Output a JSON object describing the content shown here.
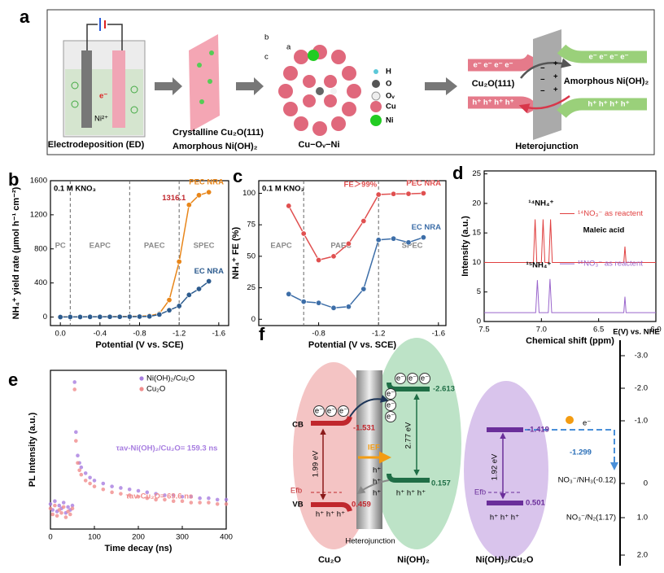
{
  "chart_data": [
    {
      "type": "line",
      "panel_label": "b",
      "xlabel": "Potential (V vs. SCE)",
      "ylabel": "NH₄⁺ yield rate (μmol h⁻¹ cm⁻²)",
      "note": "0.1 M KNO₃",
      "xlim": [
        0.1,
        -1.7
      ],
      "ylim": [
        -100,
        1600
      ],
      "xticks": [
        {
          "value": 0,
          "label": "0.0"
        },
        -0.4,
        -0.8,
        -1.2,
        -1.6
      ],
      "yticks": [
        0,
        400,
        800,
        1200,
        1600
      ],
      "vlines": [
        -0.1,
        -0.7,
        -1.2
      ],
      "region_labels": [
        "PC",
        "EAPC",
        "PAEC",
        "SPEC"
      ],
      "markers": true,
      "legend": "inline",
      "x": [
        0,
        -0.1,
        -0.2,
        -0.3,
        -0.4,
        -0.5,
        -0.6,
        -0.7,
        -0.8,
        -0.9,
        -1,
        -1.1,
        -1.2,
        -1.3,
        -1.4,
        -1.5
      ],
      "series": [
        {
          "name": "PEC NRA",
          "color": "#e8861a",
          "values": [
            2,
            3,
            3,
            4,
            4,
            5,
            6,
            8,
            10,
            15,
            40,
            200,
            650,
            1316.1,
            1430,
            1465
          ]
        },
        {
          "name": "EC NRA",
          "color": "#2c5b8e",
          "values": [
            0,
            1,
            1,
            2,
            2,
            3,
            3,
            4,
            5,
            8,
            30,
            80,
            130,
            260,
            330,
            420
          ]
        }
      ]
    },
    {
      "type": "line",
      "panel_label": "c",
      "xlabel": "Potential (V vs. SCE)",
      "ylabel": "NH₄⁺ FE (%)",
      "note": "0.1 M KNO₃",
      "annotation": "FE＞99%",
      "xlim": [
        -0.4,
        -1.65
      ],
      "ylim": [
        -5,
        110
      ],
      "xticks": [
        -0.8,
        -1.2,
        -1.6
      ],
      "yticks": [
        0,
        25,
        50,
        75,
        100
      ],
      "vlines": [
        -0.7,
        -1.2
      ],
      "region_labels": [
        "EAPC",
        "PAEC",
        "SPEC"
      ],
      "markers": true,
      "legend": "inline",
      "x": [
        -0.6,
        -0.7,
        -0.8,
        -0.9,
        -1,
        -1.1,
        -1.2,
        -1.3,
        -1.4,
        -1.5
      ],
      "series": [
        {
          "name": "PEC NRA",
          "color": "#e05050",
          "values": [
            90,
            68,
            47,
            50,
            60,
            78,
            99,
            99.5,
            99.6,
            100
          ]
        },
        {
          "name": "EC NRA",
          "color": "#3d6ea8",
          "values": [
            20,
            14,
            13,
            9,
            10,
            24,
            63,
            64,
            61,
            65
          ]
        }
      ]
    },
    {
      "type": "line",
      "panel_label": "d",
      "xlabel": "Chemical shift (ppm)",
      "ylabel": "Intensity (a.u.)",
      "xlim": [
        7.5,
        6.0
      ],
      "ylim": [
        0,
        25.5
      ],
      "xticks": [
        7.5,
        {
          "value": 7,
          "label": "7.0"
        },
        6.5,
        {
          "value": 6,
          "label": "6.0"
        }
      ],
      "yticks": [
        0,
        5,
        10,
        15,
        20,
        25
      ],
      "legend": "inline",
      "annotations": [
        "¹⁴NH₄⁺",
        "¹⁵NH₄⁺",
        "Maleic acid"
      ],
      "series": [
        {
          "name": "¹⁴NO₃⁻ as reactent",
          "color": "#e04040",
          "x": [
            7.5,
            7.07,
            7.055,
            7.04,
            7.0,
            6.985,
            6.97,
            6.935,
            6.92,
            6.905,
            6.28,
            6.27,
            6.26,
            6.0
          ],
          "values": [
            10,
            10,
            17.3,
            10,
            10,
            17.3,
            10,
            10,
            17.3,
            10,
            10,
            12.7,
            10,
            10
          ]
        },
        {
          "name": "¹⁵NO₃⁻ as reactent",
          "color": "#9a66cc",
          "x": [
            7.5,
            7.05,
            7.035,
            7.02,
            6.94,
            6.925,
            6.91,
            6.28,
            6.27,
            6.26,
            6.0
          ],
          "values": [
            1.5,
            1.5,
            7,
            1.5,
            1.5,
            7.2,
            1.5,
            1.5,
            4.2,
            1.5,
            1.5
          ]
        }
      ]
    },
    {
      "type": "scatter",
      "panel_label": "e",
      "xlabel": "Time decay (ns)",
      "ylabel": "PL Intensity (a.u.)",
      "xlim": [
        0,
        400
      ],
      "ylim": [
        0,
        1.08
      ],
      "xticks": [
        0,
        100,
        200,
        300,
        400
      ],
      "legend": "upper right",
      "annotations": [
        "τav-Ni(OH)₂/Cu₂O= 159.3 ns",
        "τav-Cu₂O= 69.6 ns"
      ],
      "series": [
        {
          "name": "Ni(OH)₂/Cu₂O",
          "color": "#a77de0",
          "x": [
            0,
            5,
            10,
            15,
            20,
            25,
            30,
            35,
            40,
            45,
            50,
            55,
            58,
            62,
            66,
            70,
            80,
            90,
            100,
            120,
            140,
            160,
            180,
            200,
            220,
            240,
            260,
            280,
            300,
            320,
            340,
            360,
            380,
            400
          ],
          "values": [
            0.17,
            0.13,
            0.19,
            0.12,
            0.16,
            0.14,
            0.18,
            0.11,
            0.15,
            0.13,
            0.16,
            1.0,
            0.66,
            0.5,
            0.45,
            0.42,
            0.38,
            0.35,
            0.33,
            0.31,
            0.29,
            0.28,
            0.27,
            0.26,
            0.25,
            0.24,
            0.23,
            0.23,
            0.22,
            0.22,
            0.21,
            0.21,
            0.2,
            0.2
          ]
        },
        {
          "name": "Cu₂O",
          "color": "#f08c8c",
          "x": [
            0,
            5,
            10,
            15,
            20,
            25,
            30,
            35,
            40,
            45,
            50,
            55,
            58,
            62,
            66,
            70,
            80,
            90,
            100,
            120,
            140,
            160,
            180,
            200,
            220,
            240,
            260,
            280,
            300,
            320,
            340,
            360,
            380,
            400
          ],
          "values": [
            0.14,
            0.1,
            0.16,
            0.09,
            0.13,
            0.11,
            0.15,
            0.08,
            0.12,
            0.1,
            0.14,
            0.95,
            0.6,
            0.45,
            0.4,
            0.37,
            0.33,
            0.31,
            0.29,
            0.27,
            0.25,
            0.24,
            0.23,
            0.22,
            0.21,
            0.2,
            0.2,
            0.19,
            0.19,
            0.18,
            0.18,
            0.18,
            0.17,
            0.17
          ]
        }
      ]
    }
  ],
  "diagram_a": {
    "panel_label": "a",
    "ion": "Ni²⁺",
    "electron": "e⁻",
    "caption_ed": "Electrodeposition (ED)",
    "legend_cu2o": "Crystalline Cu₂O(111)",
    "legend_nioh": "Amorphous Ni(OH)₂",
    "axis_a": "a",
    "axis_b": "b",
    "axis_c": "c",
    "structure": "Cu−Oᵥ−Ni",
    "atoms": [
      "H",
      "O",
      "Oᵥ",
      "Cu",
      "Ni"
    ],
    "electrons": "e⁻ e⁻ e⁻ e⁻",
    "holes": "h⁺ h⁺ h⁺ h⁺",
    "left_material": "Cu₂O(111)",
    "right_material": "Amorphous  Ni(OH)₂",
    "minus": "−",
    "plus": "+",
    "caption_hj": "Heterojunction"
  },
  "diagram_f": {
    "panel_label": "f",
    "axis_title": "E(V) vs. NHE",
    "axis_ticks": [
      "-3.0",
      "-2.0",
      "-1.0",
      "0",
      "1.0",
      "2.0"
    ],
    "cb": "CB",
    "vb": "VB",
    "efb": "Efb",
    "cu2o_cb": "-1.531",
    "cu2o_vb": "0.459",
    "nioh_cb": "-2.613",
    "nioh_vb": "0.157",
    "het_cb": "-1.419",
    "het_vb": "0.501",
    "gaps": [
      "1.99 eV",
      "2.77 eV",
      "1.92 eV"
    ],
    "ief": "IEF",
    "electron": "e⁻",
    "hole": "h⁺",
    "holes": "h⁺ h⁺ h⁺",
    "shift": "-1.299",
    "redox": [
      "NO₃⁻/NH₃(-0.12)",
      "NO₃⁻/N₂(1.17)"
    ],
    "heterojunction": "Heterojunction",
    "labels": [
      "Cu₂O",
      "Ni(OH)₂",
      "Ni(OH)₂/Cu₂O"
    ]
  }
}
